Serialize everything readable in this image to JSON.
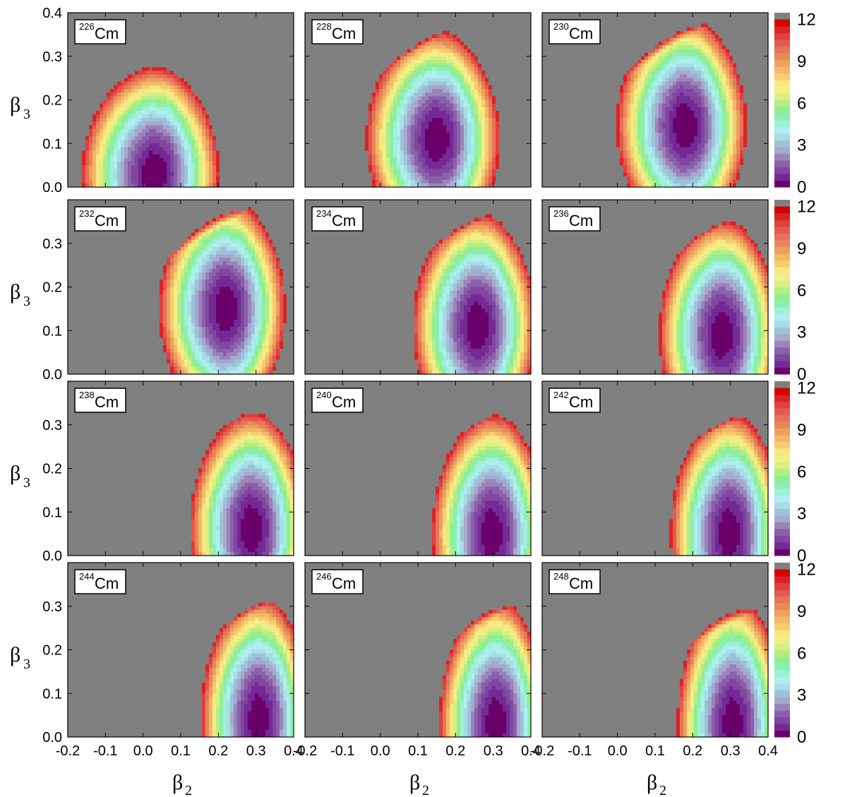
{
  "chart_data": {
    "type": "heatmap",
    "title": "",
    "xlabel": {
      "base": "β",
      "sub": "2"
    },
    "ylabel": {
      "base": "β",
      "sub": "3"
    },
    "xlim": [
      -0.2,
      0.4
    ],
    "ylim": [
      0.0,
      0.4
    ],
    "x_ticks": [
      "-0.2",
      "-0.1",
      "0.0",
      "0.1",
      "0.2",
      "0.3",
      "0.4"
    ],
    "y_ticks": [
      "0.0",
      "0.1",
      "0.2",
      "0.3",
      "0.4"
    ],
    "y_ticks_lower_rows": [
      "0.0",
      "0.1",
      "0.2",
      "0.3"
    ],
    "colorbar": {
      "range": [
        0,
        12
      ],
      "ticks": [
        "0",
        "3",
        "6",
        "9",
        "12"
      ],
      "step": 0.5,
      "overflow_color": "#808080",
      "colors": [
        "#6a006a",
        "#742a94",
        "#8046a0",
        "#8a60ab",
        "#9a84b9",
        "#a6a8cc",
        "#9cc3d9",
        "#a6dde6",
        "#b0eef0",
        "#9ff0d8",
        "#8aefb0",
        "#90ee90",
        "#b2ee82",
        "#d6f082",
        "#f0f08a",
        "#fbe680",
        "#f8cc70",
        "#f2b866",
        "#eca15c",
        "#e8885a",
        "#e67458",
        "#e35a4e",
        "#e0403e",
        "#dd2222",
        "#d40000"
      ]
    },
    "panels": [
      {
        "label_mass": "226",
        "label_element": "Cm",
        "minimum": [
          0.02,
          0.03
        ],
        "min_energy": 0.0
      },
      {
        "label_mass": "228",
        "label_element": "Cm",
        "minimum": [
          0.14,
          0.11
        ],
        "min_energy": 0.0
      },
      {
        "label_mass": "230",
        "label_element": "Cm",
        "minimum": [
          0.17,
          0.14
        ],
        "min_energy": 0.0
      },
      {
        "label_mass": "232",
        "label_element": "Cm",
        "minimum": [
          0.21,
          0.15
        ],
        "min_energy": 0.0
      },
      {
        "label_mass": "234",
        "label_element": "Cm",
        "minimum": [
          0.25,
          0.11
        ],
        "min_energy": 0.0
      },
      {
        "label_mass": "236",
        "label_element": "Cm",
        "minimum": [
          0.27,
          0.09
        ],
        "min_energy": 0.0
      },
      {
        "label_mass": "238",
        "label_element": "Cm",
        "minimum": [
          0.28,
          0.06
        ],
        "min_energy": 0.0
      },
      {
        "label_mass": "240",
        "label_element": "Cm",
        "minimum": [
          0.29,
          0.05
        ],
        "min_energy": 0.0
      },
      {
        "label_mass": "242",
        "label_element": "Cm",
        "minimum": [
          0.29,
          0.05
        ],
        "min_energy": 0.0
      },
      {
        "label_mass": "244",
        "label_element": "Cm",
        "minimum": [
          0.3,
          0.04
        ],
        "min_energy": 0.0
      },
      {
        "label_mass": "246",
        "label_element": "Cm",
        "minimum": [
          0.3,
          0.03
        ],
        "min_energy": 0.0
      },
      {
        "label_mass": "248",
        "label_element": "Cm",
        "minimum": [
          0.3,
          0.03
        ],
        "min_energy": 0.0
      }
    ]
  }
}
